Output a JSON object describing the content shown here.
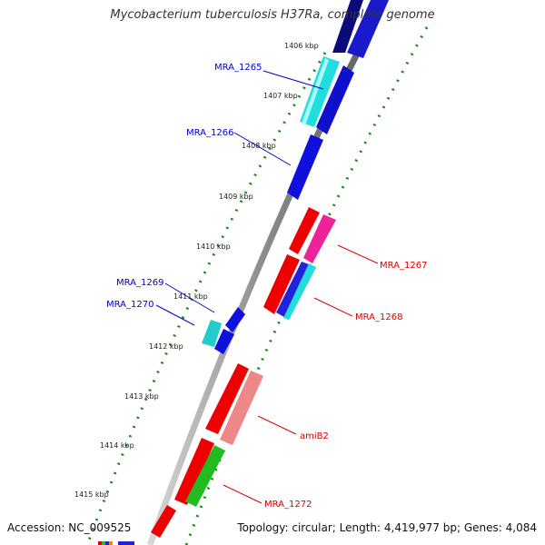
{
  "header": {
    "title": "Mycobacterium tuberculosis H37Ra, complete genome"
  },
  "footer": {
    "accession": "Accession: NC_009525",
    "summary": "Topology: circular; Length: 4,419,977 bp; Genes: 4,084"
  },
  "ruler": {
    "ticks": [
      "1406 kbp",
      "1407 kbp",
      "1408 kbp",
      "1409 kbp",
      "1410 kbp",
      "1411 kbp",
      "1412 kbp",
      "1413 kbp",
      "1414 kbp",
      "1415 kbp"
    ]
  },
  "colors": {
    "reverse_label": "#0000cc",
    "forward_label": "#dd0000",
    "tick_green": "#118811",
    "backbone": "#888888"
  },
  "gene_labels": {
    "reverse": [
      "MRA_1265",
      "MRA_1266",
      "MRA_1269",
      "MRA_1270"
    ],
    "forward": [
      "MRA_1267",
      "MRA_1268",
      "amiB2",
      "MRA_1272"
    ]
  }
}
